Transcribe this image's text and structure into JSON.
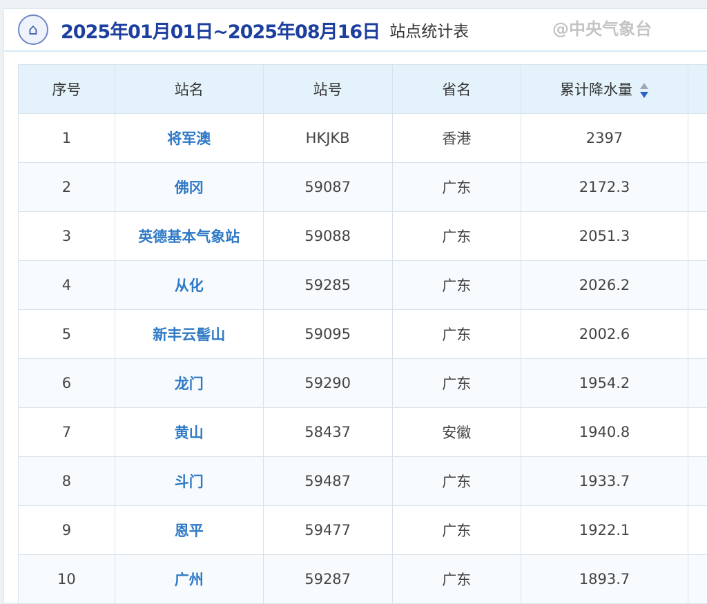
{
  "header": {
    "title": "2025年01月01日~2025年08月16日",
    "subtitle": "站点统计表",
    "icon": "home-shield-icon"
  },
  "columns": [
    "序号",
    "站名",
    "站号",
    "省名",
    "累计降水量"
  ],
  "rows": [
    [
      "1",
      "将军澳",
      "HKJKB",
      "香港",
      "2397"
    ],
    [
      "2",
      "佛冈",
      "59087",
      "广东",
      "2172.3"
    ],
    [
      "3",
      "英德基本气象站",
      "59088",
      "广东",
      "2051.3"
    ],
    [
      "4",
      "从化",
      "59285",
      "广东",
      "2026.2"
    ],
    [
      "5",
      "新丰云髻山",
      "59095",
      "广东",
      "2002.6"
    ],
    [
      "6",
      "龙门",
      "59290",
      "广东",
      "1954.2"
    ],
    [
      "7",
      "黄山",
      "58437",
      "安徽",
      "1940.8"
    ],
    [
      "8",
      "斗门",
      "59487",
      "广东",
      "1933.7"
    ],
    [
      "9",
      "恩平",
      "59477",
      "广东",
      "1922.1"
    ],
    [
      "10",
      "广州",
      "59287",
      "广东",
      "1893.7"
    ]
  ],
  "watermark": "@中央气象台"
}
